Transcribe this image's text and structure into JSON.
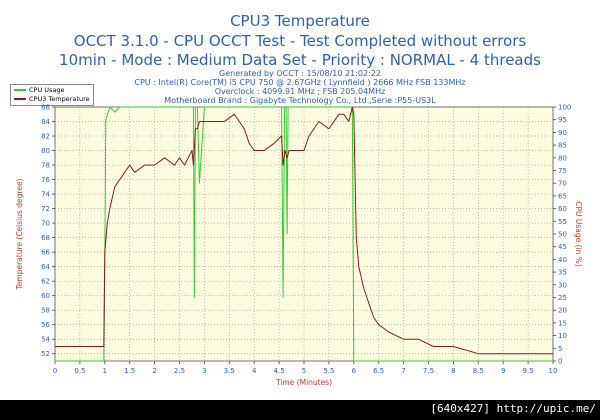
{
  "chart_data": {
    "type": "line",
    "title": "CPU3 Temperature",
    "subtitle_line1": "OCCT 3.1.0 - CPU OCCT Test - Test Completed without errors",
    "subtitle_line2": "10min - Mode : Medium Data Set - Priority : NORMAL - 4 threads",
    "info_lines": [
      "Generated by OCCT : 15/08/10 21:02:22",
      "CPU : Intel(R) Core(TM) i5 CPU 750 @ 2.67GHz ( Lynnfield ) 2666 MHz FSB 133MHz",
      "Overclock : 4099.91 MHz ; FSB 205.04MHz",
      "Motherboard Brand : Gigabyte Technology Co., Ltd.,Serie :P55-US3L"
    ],
    "xlabel": "Time (Minutes)",
    "ylabel_left": "Temperature (Celsius degree)",
    "ylabel_right": "CPU Usage (in %)",
    "xlim": [
      0,
      10
    ],
    "ylim_left": [
      51,
      86
    ],
    "ylim_right": [
      0,
      100
    ],
    "x_ticks": [
      "0",
      "0.5",
      "1",
      "1.5",
      "2",
      "2.5",
      "3",
      "3.5",
      "4",
      "4.5",
      "5",
      "5.5",
      "6",
      "6.5",
      "7",
      "7.5",
      "8",
      "8.5",
      "9",
      "9.5",
      "10"
    ],
    "y_ticks_left": [
      "52",
      "54",
      "56",
      "58",
      "60",
      "62",
      "64",
      "66",
      "68",
      "70",
      "72",
      "74",
      "76",
      "78",
      "80",
      "82",
      "84",
      "86"
    ],
    "y_ticks_right": [
      "0",
      "5",
      "10",
      "15",
      "20",
      "25",
      "30",
      "35",
      "40",
      "45",
      "50",
      "55",
      "60",
      "65",
      "70",
      "75",
      "80",
      "85",
      "90",
      "95",
      "100"
    ],
    "grid": true,
    "legend": [
      "CPU Usage",
      "CPU3 Temperature"
    ],
    "series": [
      {
        "name": "CPU Usage",
        "axis": "right",
        "color": "#33cc33",
        "x": [
          0,
          0.98,
          1.0,
          1.02,
          1.1,
          1.2,
          1.3,
          1.5,
          2.0,
          2.5,
          2.78,
          2.8,
          2.82,
          2.86,
          2.9,
          3.0,
          3.5,
          4.0,
          4.55,
          4.58,
          4.61,
          4.64,
          4.66,
          4.68,
          5.0,
          5.5,
          5.97,
          6.0,
          6.02,
          6.5,
          7.0,
          8.0,
          9.0,
          10.0
        ],
        "y": [
          0,
          0,
          40,
          95,
          100,
          98,
          100,
          100,
          100,
          100,
          100,
          25,
          100,
          100,
          70,
          100,
          100,
          100,
          100,
          25,
          100,
          100,
          50,
          100,
          100,
          100,
          100,
          0,
          0,
          0,
          0,
          0,
          0,
          0
        ]
      },
      {
        "name": "CPU3 Temperature",
        "axis": "left",
        "color": "#8b1a1a",
        "x": [
          0,
          0.3,
          0.5,
          0.7,
          0.9,
          0.98,
          1.0,
          1.05,
          1.1,
          1.2,
          1.3,
          1.4,
          1.5,
          1.6,
          1.8,
          2.0,
          2.2,
          2.4,
          2.5,
          2.6,
          2.75,
          2.78,
          2.82,
          2.86,
          2.9,
          3.0,
          3.2,
          3.4,
          3.6,
          3.7,
          3.8,
          3.9,
          4.0,
          4.2,
          4.4,
          4.55,
          4.58,
          4.62,
          4.66,
          4.7,
          4.8,
          5.0,
          5.1,
          5.3,
          5.5,
          5.7,
          5.8,
          5.9,
          5.97,
          6.0,
          6.05,
          6.1,
          6.2,
          6.3,
          6.4,
          6.5,
          6.7,
          7.0,
          7.3,
          7.6,
          8.0,
          8.5,
          9.0,
          9.5,
          10.0
        ],
        "y": [
          53,
          53,
          53,
          53,
          53,
          53,
          66,
          70,
          72,
          75,
          76,
          77,
          78,
          77,
          78,
          78,
          79,
          78,
          79,
          78,
          80,
          78,
          83,
          83,
          84,
          84,
          84,
          84,
          85,
          84,
          83,
          81,
          80,
          80,
          81,
          82,
          78,
          80,
          79,
          80,
          80,
          80,
          82,
          84,
          83,
          85,
          85,
          84,
          86,
          85,
          68,
          64,
          61,
          59,
          57,
          56,
          55,
          54,
          54,
          53,
          53,
          52,
          52,
          52,
          52
        ]
      }
    ]
  },
  "footer": {
    "watermark": "[640x427] http://upic.me/"
  }
}
